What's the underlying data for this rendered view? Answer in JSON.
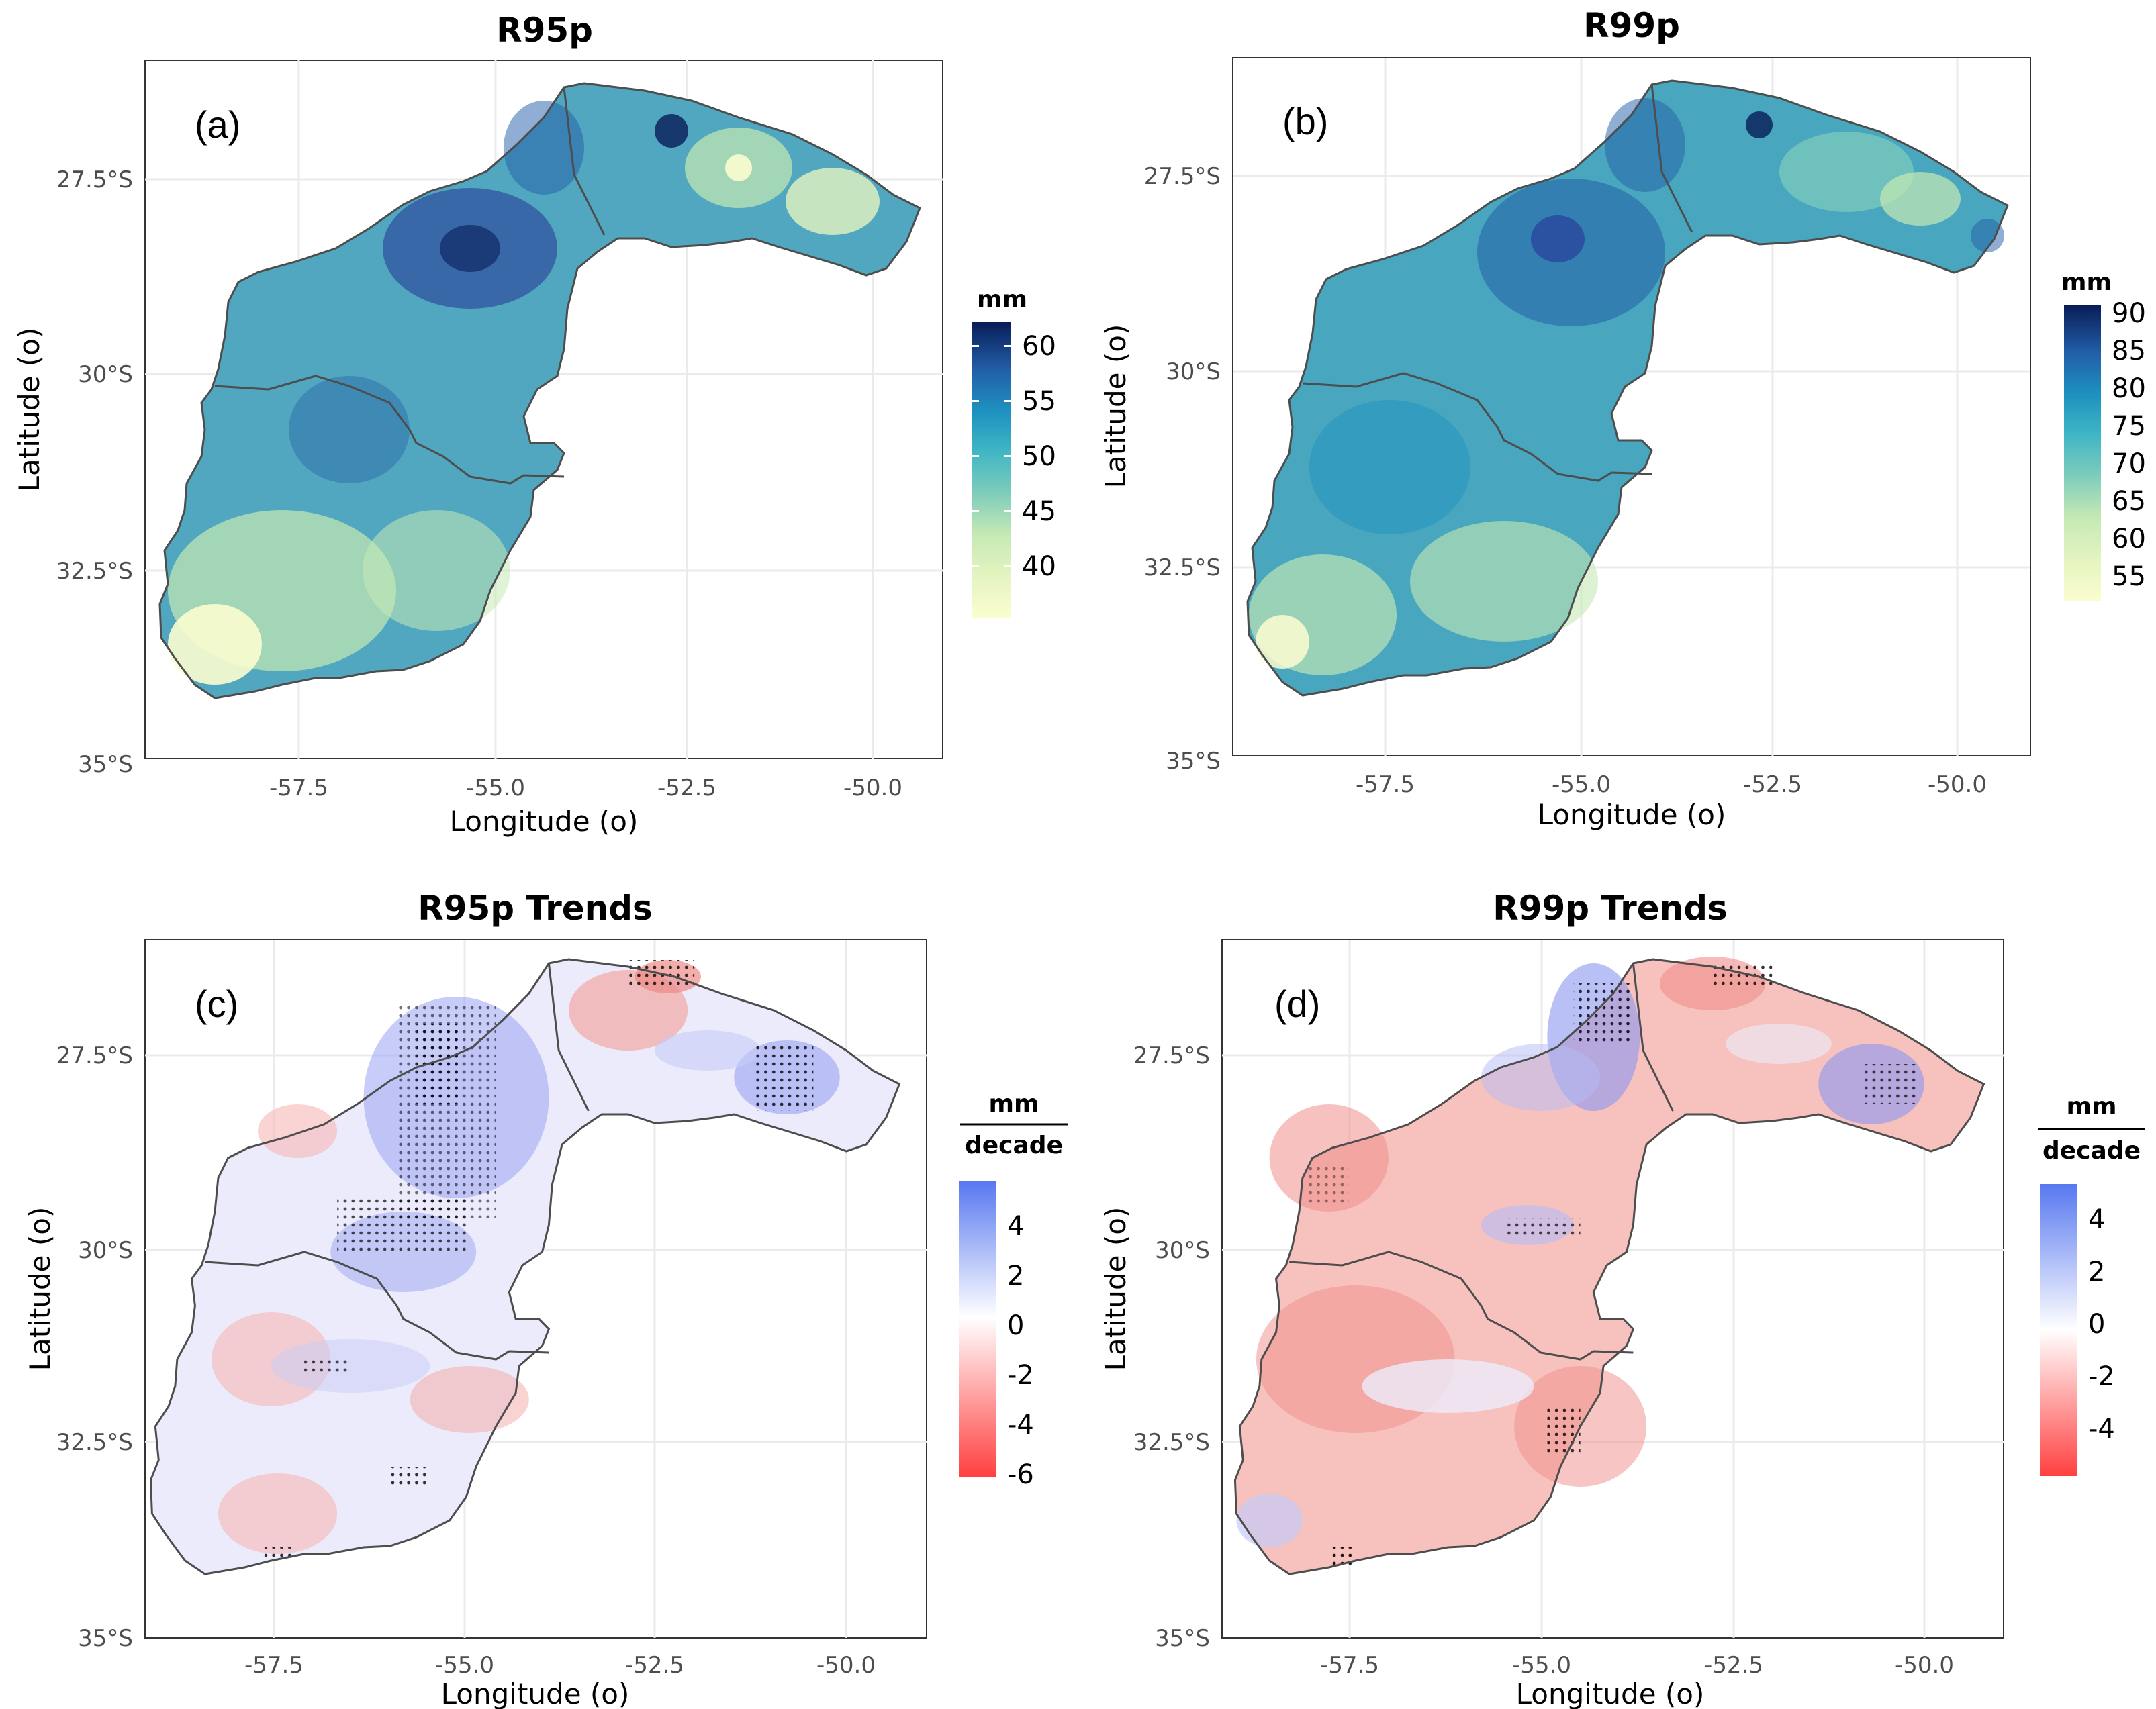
{
  "chart_data": [
    {
      "type": "heatmap",
      "panel_label": "(a)",
      "title": "R95p",
      "xlabel": "Longitude (o)",
      "ylabel": "Latitude (o)",
      "x_ticks": [
        "-57.5",
        "-55.0",
        "-52.5",
        "-50.0"
      ],
      "y_ticks": [
        "27.5°S",
        "30°S",
        "32.5°S",
        "35°S"
      ],
      "xlim": [
        -59.1,
        -49.1
      ],
      "ylim": [
        -35.0,
        -26.3
      ],
      "legend": {
        "title": "mm",
        "ticks": [
          "40",
          "45",
          "50",
          "55",
          "60"
        ],
        "range": [
          37.5,
          62.5
        ],
        "colors": [
          "#fbfdcf",
          "#c6e9b4",
          "#7fcdbb",
          "#41b6c4",
          "#1d91c0",
          "#225ea8",
          "#253494",
          "#081d58"
        ]
      }
    },
    {
      "type": "heatmap",
      "panel_label": "(b)",
      "title": "R99p",
      "xlabel": "Longitude (o)",
      "ylabel": "Latitude (o)",
      "x_ticks": [
        "-57.5",
        "-55.0",
        "-52.5",
        "-50.0"
      ],
      "y_ticks": [
        "27.5°S",
        "30°S",
        "32.5°S",
        "35°S"
      ],
      "xlim": [
        -59.1,
        -49.1
      ],
      "ylim": [
        -35.0,
        -26.3
      ],
      "legend": {
        "title": "mm",
        "ticks": [
          "55",
          "60",
          "65",
          "70",
          "75",
          "80",
          "85",
          "90"
        ],
        "range": [
          53,
          92
        ],
        "colors": [
          "#fbfdcf",
          "#c6e9b4",
          "#7fcdbb",
          "#41b6c4",
          "#1d91c0",
          "#225ea8",
          "#253494",
          "#081d58"
        ]
      }
    },
    {
      "type": "heatmap",
      "panel_label": "(c)",
      "title": "R95p Trends",
      "xlabel": "Longitude (o)",
      "ylabel": "Latitude (o)",
      "x_ticks": [
        "-57.5",
        "-55.0",
        "-52.5",
        "-50.0"
      ],
      "y_ticks": [
        "27.5°S",
        "30°S",
        "32.5°S",
        "35°S"
      ],
      "xlim": [
        -59.1,
        -49.1
      ],
      "ylim": [
        -35.0,
        -26.3
      ],
      "legend": {
        "title_top": "mm",
        "title_bottom": "decade",
        "ticks": [
          "4",
          "2",
          "0",
          "-2",
          "-4",
          "-6"
        ],
        "range": [
          -6.5,
          5.5
        ],
        "colors": [
          "#ff4040",
          "#ffffff",
          "#5878f0"
        ]
      }
    },
    {
      "type": "heatmap",
      "panel_label": "(d)",
      "title": "R99p Trends",
      "xlabel": "Longitude (o)",
      "ylabel": "Latitude (o)",
      "x_ticks": [
        "-57.5",
        "-55.0",
        "-52.5",
        "-50.0"
      ],
      "y_ticks": [
        "27.5°S",
        "30°S",
        "32.5°S",
        "35°S"
      ],
      "xlim": [
        -59.1,
        -49.1
      ],
      "ylim": [
        -35.0,
        -26.3
      ],
      "legend": {
        "title_top": "mm",
        "title_bottom": "decade",
        "ticks": [
          "4",
          "2",
          "0",
          "-2",
          "-4"
        ],
        "range": [
          -5.5,
          5.5
        ],
        "colors": [
          "#ff4040",
          "#ffffff",
          "#5878f0"
        ]
      }
    }
  ],
  "colors": {
    "frame": "#333333",
    "grid": "#ebebeb",
    "boundary": "#4d4d4d",
    "stipple": "#000000"
  }
}
